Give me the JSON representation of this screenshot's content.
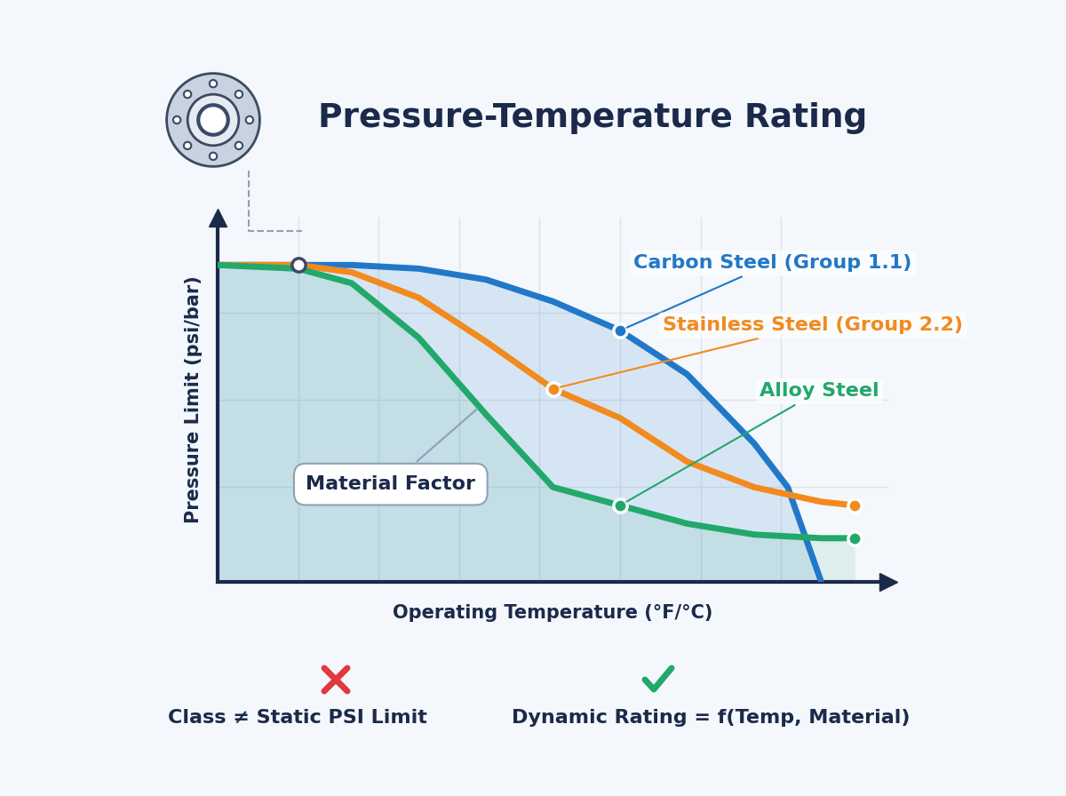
{
  "chart_data": {
    "type": "line",
    "title": "Pressure-Temperature Rating",
    "x_label": "Operating Temperature (°F/°C)",
    "y_label": "Pressure Limit (psi/bar)",
    "x": [
      0,
      12,
      20,
      30,
      40,
      50,
      60,
      70,
      80,
      85,
      90,
      95
    ],
    "xlim": [
      0,
      100
    ],
    "ylim": [
      0,
      100
    ],
    "xticks": [
      12,
      24,
      36,
      48,
      60,
      72,
      84
    ],
    "yticks": [
      26,
      50,
      74
    ],
    "grid": true,
    "tick_labels": false,
    "series": [
      {
        "name": "Carbon Steel (Group 1.1)",
        "color": "#2178c8",
        "values": [
          87,
          87,
          87,
          86,
          83,
          77,
          69,
          57,
          38,
          26,
          0,
          null
        ]
      },
      {
        "name": "Stainless Steel (Group 2.2)",
        "color": "#f28a1e",
        "values": [
          87,
          87,
          85,
          78,
          66,
          53,
          45,
          33,
          26,
          24,
          22,
          21
        ]
      },
      {
        "name": "Alloy Steel",
        "color": "#22a86b",
        "values": [
          87,
          86,
          82,
          67,
          46,
          26,
          21,
          16,
          13,
          12.5,
          12,
          12
        ]
      }
    ],
    "annotations": [
      "Material Factor",
      "Class ≠ Static PSI Limit",
      "Dynamic Rating = f(Temp, Material)"
    ]
  }
}
